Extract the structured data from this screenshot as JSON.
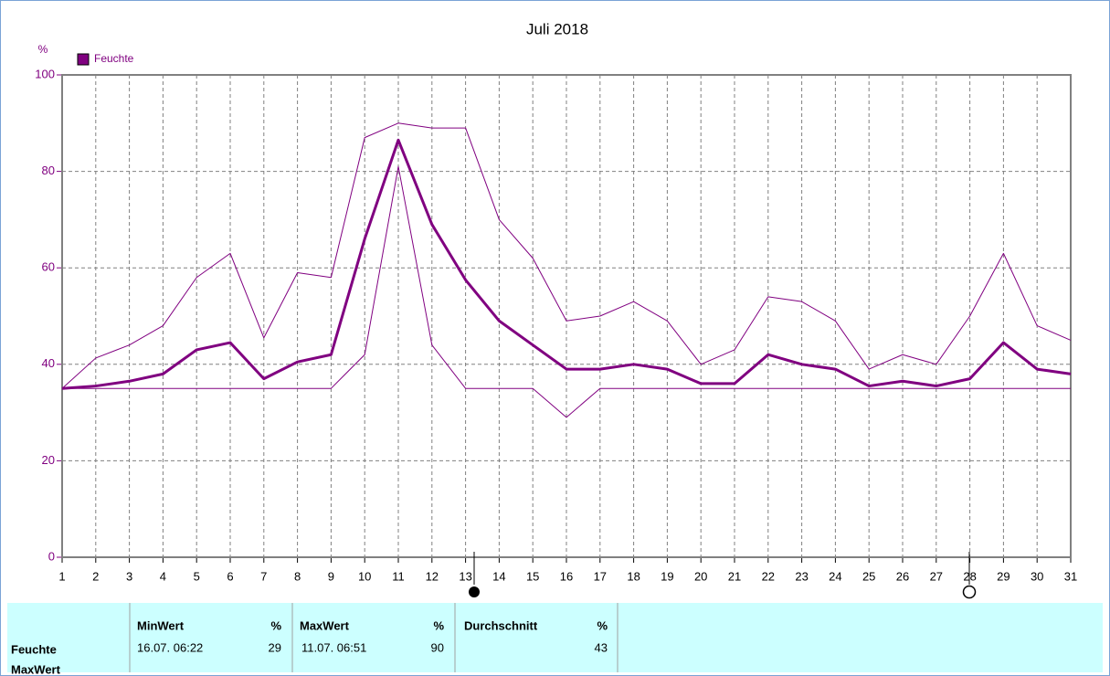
{
  "chart_data": {
    "type": "line",
    "title": "Juli 2018",
    "y_label": "%",
    "x": [
      1,
      2,
      3,
      4,
      5,
      6,
      7,
      8,
      9,
      10,
      11,
      12,
      13,
      14,
      15,
      16,
      17,
      18,
      19,
      20,
      21,
      22,
      23,
      24,
      25,
      26,
      27,
      28,
      29,
      30,
      31
    ],
    "xlim": [
      1,
      31
    ],
    "xticks": [
      1,
      2,
      3,
      4,
      5,
      6,
      7,
      8,
      9,
      10,
      11,
      12,
      13,
      14,
      15,
      16,
      17,
      18,
      19,
      20,
      21,
      22,
      23,
      24,
      25,
      26,
      27,
      28,
      29,
      30,
      31
    ],
    "ylim": [
      0,
      100
    ],
    "yticks": [
      0,
      20,
      40,
      60,
      80,
      100
    ],
    "grid": true,
    "series": [
      {
        "name": "Feuchte",
        "color": "#800080",
        "line_width": 3,
        "values": [
          35,
          35.5,
          36.5,
          38,
          43,
          44.5,
          37,
          40.5,
          42,
          66,
          86.5,
          69,
          57.5,
          49,
          44,
          39,
          39,
          40,
          39,
          36,
          36,
          42,
          40,
          39,
          35.5,
          36.5,
          35.5,
          37,
          44.5,
          39,
          38
        ]
      },
      {
        "color": "#800080",
        "line_width": 1,
        "values": [
          35,
          41.3,
          44,
          48,
          58,
          63,
          45.5,
          59,
          58,
          87,
          90,
          89,
          89,
          70,
          62,
          49,
          50,
          53,
          49,
          40,
          43,
          54,
          53,
          49,
          39,
          42,
          40,
          50,
          63,
          48,
          45
        ]
      },
      {
        "color": "#800080",
        "line_width": 1,
        "values": [
          35,
          35,
          35,
          35,
          35,
          35,
          35,
          35,
          35,
          42,
          81,
          44,
          35,
          35,
          35,
          29,
          35,
          35,
          35,
          35,
          35,
          35,
          35,
          35,
          35,
          35,
          35,
          35,
          35,
          35,
          35
        ]
      }
    ]
  },
  "table": {
    "row_label": "Feuchte",
    "row_label_2": "MaxWert",
    "columns": [
      {
        "header": "MinWert",
        "unit": "%",
        "time": "16.07.  06:22",
        "value": 29
      },
      {
        "header": "MaxWert",
        "unit": "%",
        "time": "11.07.  06:51",
        "value": 90
      },
      {
        "header": "Durchschnitt",
        "unit": "%",
        "value": 43
      }
    ]
  }
}
